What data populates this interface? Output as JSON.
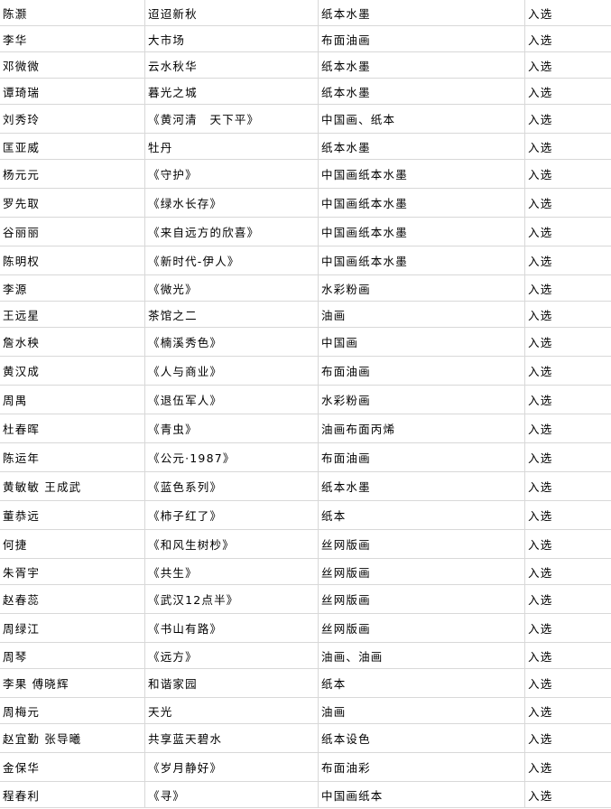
{
  "table": {
    "rows": [
      {
        "artist": "陈灏",
        "title": "迢迢新秋",
        "medium": "纸本水墨",
        "result": "入选"
      },
      {
        "artist": "李华",
        "title": "大市场",
        "medium": "布面油画",
        "result": "入选"
      },
      {
        "artist": "邓微微",
        "title": "云水秋华",
        "medium": "纸本水墨",
        "result": "入选"
      },
      {
        "artist": "谭琦瑞",
        "title": "暮光之城",
        "medium": "纸本水墨",
        "result": "入选"
      },
      {
        "artist": "刘秀玲",
        "title": "《黄河清　天下平》",
        "medium": "中国画、纸本",
        "result": "入选"
      },
      {
        "artist": "匡亚威",
        "title": "牡丹",
        "medium": "纸本水墨",
        "result": "入选"
      },
      {
        "artist": "杨元元",
        "title": "《守护》",
        "medium": "中国画纸本水墨",
        "result": "入选"
      },
      {
        "artist": "罗先取",
        "title": "《绿水长存》",
        "medium": "中国画纸本水墨",
        "result": "入选"
      },
      {
        "artist": "谷丽丽",
        "title": "《来自远方的欣喜》",
        "medium": "中国画纸本水墨",
        "result": "入选"
      },
      {
        "artist": "陈明权",
        "title": "《新时代-伊人》",
        "medium": "中国画纸本水墨",
        "result": "入选"
      },
      {
        "artist": "李源",
        "title": "《微光》",
        "medium": "水彩粉画",
        "result": "入选"
      },
      {
        "artist": "王远星",
        "title": "茶馆之二",
        "medium": "油画",
        "result": "入选"
      },
      {
        "artist": "詹水秧",
        "title": "《楠溪秀色》",
        "medium": "中国画",
        "result": "入选"
      },
      {
        "artist": "黄汉成",
        "title": "《人与商业》",
        "medium": "布面油画",
        "result": "入选"
      },
      {
        "artist": "周禺",
        "title": "《退伍军人》",
        "medium": "水彩粉画",
        "result": "入选"
      },
      {
        "artist": "杜春晖",
        "title": "《青虫》",
        "medium": "油画布面丙烯",
        "result": "入选"
      },
      {
        "artist": "陈运年",
        "title": "《公元·1987》",
        "medium": "布面油画",
        "result": "入选"
      },
      {
        "artist": "黄敏敏 王成武",
        "title": "《蓝色系列》",
        "medium": "纸本水墨",
        "result": "入选"
      },
      {
        "artist": "董恭远",
        "title": "《柿子红了》",
        "medium": "纸本",
        "result": "入选"
      },
      {
        "artist": "何捷",
        "title": "《和风生树杪》",
        "medium": "丝网版画",
        "result": "入选"
      },
      {
        "artist": "朱胥宇",
        "title": "《共生》",
        "medium": "丝网版画",
        "result": "入选"
      },
      {
        "artist": "赵春蕊",
        "title": "《武汉12点半》",
        "medium": "丝网版画",
        "result": "入选"
      },
      {
        "artist": "周绿江",
        "title": "《书山有路》",
        "medium": "丝网版画",
        "result": "入选"
      },
      {
        "artist": "周琴",
        "title": "《远方》",
        "medium": "油画、油画",
        "result": "入选"
      },
      {
        "artist": "李果 傅晓辉",
        "title": "和谐家园",
        "medium": "纸本",
        "result": "入选"
      },
      {
        "artist": "周梅元",
        "title": "天光",
        "medium": "油画",
        "result": "入选"
      },
      {
        "artist": "赵宜勤 张导曦",
        "title": "共享蓝天碧水",
        "medium": "纸本设色",
        "result": "入选"
      },
      {
        "artist": "金保华",
        "title": "《岁月静好》",
        "medium": "布面油彩",
        "result": "入选"
      },
      {
        "artist": "程春利",
        "title": "《寻》",
        "medium": "中国画纸本",
        "result": "入选"
      }
    ]
  }
}
